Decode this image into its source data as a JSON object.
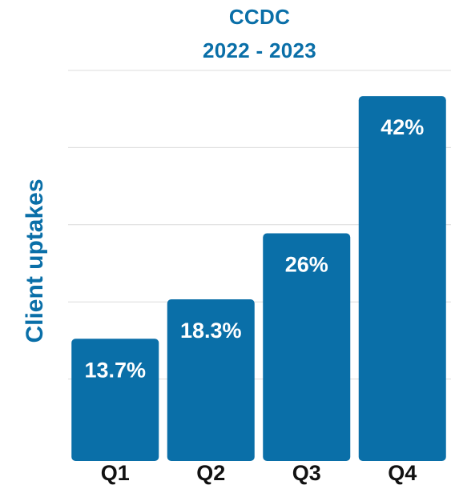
{
  "colors": {
    "bar": "#0a6fa8",
    "title": "#0a6fa8",
    "ylabel": "#0a6fa8",
    "grid": "#dcdcdc"
  },
  "chart_data": {
    "type": "bar",
    "title": "CCDC",
    "subtitle": "2022 - 2023",
    "xlabel": "",
    "ylabel": "Client uptakes",
    "categories": [
      "Q1",
      "Q2",
      "Q3",
      "Q4"
    ],
    "values": [
      13.7,
      18.3,
      26,
      42
    ],
    "data_labels": [
      "13.7%",
      "18.3%",
      "26%",
      "42%"
    ],
    "ylim": [
      0,
      45
    ],
    "grid": true,
    "legend": "none"
  }
}
